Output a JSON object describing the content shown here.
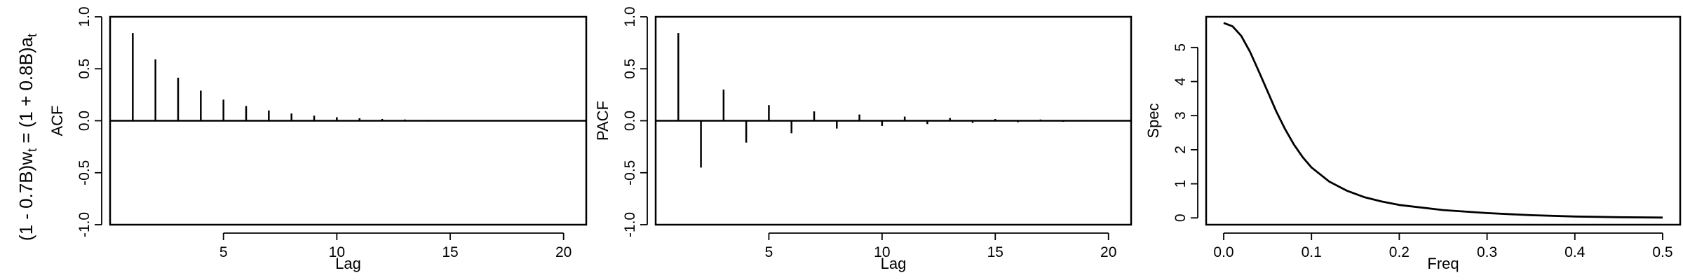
{
  "row_label": {
    "prefix": "(1 - 0.7B)w",
    "sub1": "t",
    "middle": " = (1 + 0.8B)a",
    "sub2": "t"
  },
  "chart_data": [
    {
      "type": "bar",
      "subtype": "lollipop-stem",
      "title": "",
      "xlabel": "Lag",
      "ylabel": "ACF",
      "xlim": [
        0,
        21
      ],
      "ylim": [
        -1.0,
        1.0
      ],
      "xticks": [
        5,
        10,
        15,
        20
      ],
      "yticks": [
        -1.0,
        -0.5,
        0.0,
        0.5,
        1.0
      ],
      "ytick_labels": [
        "-1.0",
        "-0.5",
        "0.0",
        "0.5",
        "1.0"
      ],
      "zero_line": true,
      "x": [
        1,
        2,
        3,
        4,
        5,
        6,
        7,
        8,
        9,
        10,
        11,
        12,
        13,
        14,
        15,
        16,
        17,
        18,
        19,
        20
      ],
      "values": [
        0.844,
        0.591,
        0.414,
        0.29,
        0.203,
        0.142,
        0.099,
        0.07,
        0.049,
        0.034,
        0.024,
        0.017,
        0.012,
        0.008,
        0.006,
        0.004,
        0.003,
        0.002,
        0.001,
        0.001
      ]
    },
    {
      "type": "bar",
      "subtype": "lollipop-stem",
      "title": "",
      "xlabel": "Lag",
      "ylabel": "PACF",
      "xlim": [
        0,
        21
      ],
      "ylim": [
        -1.0,
        1.0
      ],
      "xticks": [
        5,
        10,
        15,
        20
      ],
      "yticks": [
        -1.0,
        -0.5,
        0.0,
        0.5,
        1.0
      ],
      "ytick_labels": [
        "-1.0",
        "-0.5",
        "0.0",
        "0.5",
        "1.0"
      ],
      "zero_line": true,
      "x": [
        1,
        2,
        3,
        4,
        5,
        6,
        7,
        8,
        9,
        10,
        11,
        12,
        13,
        14,
        15,
        16,
        17,
        18,
        19,
        20
      ],
      "values": [
        0.844,
        -0.45,
        0.3,
        -0.21,
        0.15,
        -0.12,
        0.09,
        -0.075,
        0.06,
        -0.05,
        0.04,
        -0.032,
        0.026,
        -0.021,
        0.017,
        -0.014,
        0.012,
        -0.01,
        0.008,
        -0.006
      ]
    },
    {
      "type": "line",
      "title": "",
      "xlabel": "Freq",
      "ylabel": "Spec",
      "xlim": [
        -0.02,
        0.52
      ],
      "ylim": [
        -0.2,
        5.9
      ],
      "xticks": [
        0.0,
        0.1,
        0.2,
        0.3,
        0.4,
        0.5
      ],
      "xtick_labels": [
        "0.0",
        "0.1",
        "0.2",
        "0.3",
        "0.4",
        "0.5"
      ],
      "yticks": [
        0,
        1,
        2,
        3,
        4,
        5
      ],
      "ytick_labels": [
        "0",
        "1",
        "2",
        "3",
        "4",
        "5"
      ],
      "x": [
        0.0,
        0.01,
        0.02,
        0.03,
        0.04,
        0.05,
        0.06,
        0.07,
        0.08,
        0.09,
        0.1,
        0.12,
        0.14,
        0.16,
        0.18,
        0.2,
        0.25,
        0.3,
        0.35,
        0.4,
        0.45,
        0.5
      ],
      "values": [
        5.72,
        5.62,
        5.34,
        4.87,
        4.3,
        3.71,
        3.12,
        2.6,
        2.15,
        1.78,
        1.48,
        1.07,
        0.8,
        0.61,
        0.48,
        0.38,
        0.23,
        0.14,
        0.08,
        0.04,
        0.02,
        0.01
      ]
    }
  ]
}
